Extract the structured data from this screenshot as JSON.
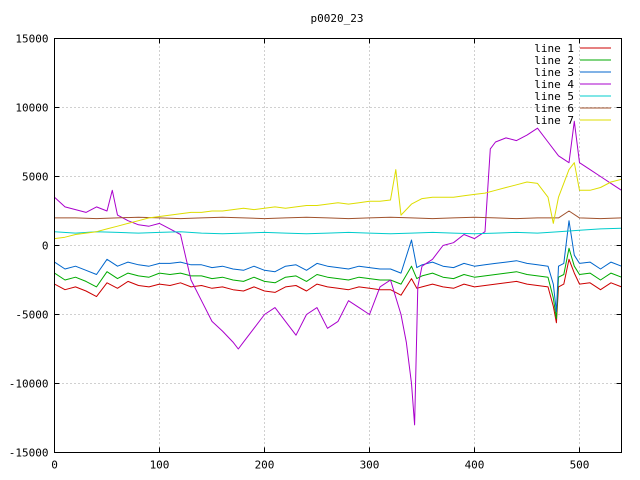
{
  "chart_data": {
    "type": "line",
    "title": "p0020_23",
    "xlabel": "",
    "ylabel": "",
    "xlim": [
      0,
      540
    ],
    "ylim": [
      -15000,
      15000
    ],
    "xticks": [
      0,
      100,
      200,
      300,
      400,
      500
    ],
    "yticks": [
      -15000,
      -10000,
      -5000,
      0,
      5000,
      10000,
      15000
    ],
    "grid": true,
    "legend": "top-right",
    "series": [
      {
        "name": "line 1",
        "color": "#cc0000",
        "x": [
          0,
          10,
          20,
          30,
          40,
          50,
          60,
          70,
          80,
          90,
          100,
          110,
          120,
          130,
          140,
          150,
          160,
          170,
          180,
          190,
          200,
          210,
          220,
          230,
          240,
          250,
          260,
          270,
          280,
          290,
          300,
          310,
          320,
          330,
          340,
          345,
          350,
          360,
          370,
          380,
          390,
          400,
          410,
          420,
          430,
          440,
          450,
          460,
          470,
          475,
          478,
          480,
          485,
          490,
          495,
          500,
          510,
          520,
          530,
          540
        ],
        "y": [
          -2800,
          -3200,
          -3000,
          -3300,
          -3700,
          -2700,
          -3100,
          -2600,
          -2900,
          -3000,
          -2800,
          -2900,
          -2700,
          -3000,
          -2900,
          -3100,
          -3000,
          -3200,
          -3300,
          -3000,
          -3300,
          -3400,
          -3000,
          -2900,
          -3300,
          -2800,
          -3000,
          -3100,
          -3200,
          -3000,
          -3100,
          -3200,
          -3200,
          -3600,
          -2400,
          -3100,
          -3000,
          -2800,
          -3000,
          -3100,
          -2800,
          -3000,
          -2900,
          -2800,
          -2700,
          -2600,
          -2800,
          -2900,
          -3000,
          -4400,
          -5600,
          -3000,
          -2800,
          -1000,
          -2000,
          -2800,
          -2700,
          -3200,
          -2700,
          -3000
        ]
      },
      {
        "name": "line 2",
        "color": "#00aa00",
        "x": [
          0,
          10,
          20,
          30,
          40,
          50,
          60,
          70,
          80,
          90,
          100,
          110,
          120,
          130,
          140,
          150,
          160,
          170,
          180,
          190,
          200,
          210,
          220,
          230,
          240,
          250,
          260,
          270,
          280,
          290,
          300,
          310,
          320,
          330,
          340,
          345,
          350,
          360,
          370,
          380,
          390,
          400,
          410,
          420,
          430,
          440,
          450,
          460,
          470,
          475,
          478,
          480,
          485,
          490,
          495,
          500,
          510,
          520,
          530,
          540
        ],
        "y": [
          -2000,
          -2500,
          -2300,
          -2600,
          -3000,
          -1900,
          -2400,
          -2000,
          -2200,
          -2300,
          -2000,
          -2100,
          -2000,
          -2200,
          -2200,
          -2400,
          -2300,
          -2500,
          -2600,
          -2300,
          -2600,
          -2700,
          -2300,
          -2200,
          -2600,
          -2100,
          -2300,
          -2400,
          -2500,
          -2300,
          -2400,
          -2500,
          -2500,
          -2800,
          -1500,
          -2400,
          -2200,
          -2000,
          -2300,
          -2400,
          -2100,
          -2300,
          -2200,
          -2100,
          -2000,
          -1900,
          -2100,
          -2200,
          -2300,
          -3800,
          -5300,
          -2300,
          -2100,
          -200,
          -1500,
          -2100,
          -2000,
          -2500,
          -2000,
          -2300
        ]
      },
      {
        "name": "line 3",
        "color": "#0066cc",
        "x": [
          0,
          10,
          20,
          30,
          40,
          50,
          60,
          70,
          80,
          90,
          100,
          110,
          120,
          130,
          140,
          150,
          160,
          170,
          180,
          190,
          200,
          210,
          220,
          230,
          240,
          250,
          260,
          270,
          280,
          290,
          300,
          310,
          320,
          330,
          340,
          345,
          350,
          360,
          370,
          380,
          390,
          400,
          410,
          420,
          430,
          440,
          450,
          460,
          470,
          475,
          478,
          480,
          485,
          490,
          495,
          500,
          510,
          520,
          530,
          540
        ],
        "y": [
          -1200,
          -1700,
          -1500,
          -1800,
          -2100,
          -1000,
          -1500,
          -1200,
          -1400,
          -1500,
          -1300,
          -1300,
          -1200,
          -1400,
          -1400,
          -1600,
          -1500,
          -1700,
          -1800,
          -1500,
          -1800,
          -1900,
          -1500,
          -1400,
          -1800,
          -1300,
          -1500,
          -1600,
          -1700,
          -1500,
          -1600,
          -1700,
          -1700,
          -2000,
          400,
          -1600,
          -1400,
          -1200,
          -1500,
          -1600,
          -1300,
          -1500,
          -1400,
          -1300,
          -1200,
          -1100,
          -1300,
          -1400,
          -1500,
          -2800,
          -4800,
          -1500,
          -1300,
          1800,
          -700,
          -1300,
          -1200,
          -1700,
          -1200,
          -1500
        ]
      },
      {
        "name": "line 4",
        "color": "#aa00cc",
        "x": [
          0,
          10,
          20,
          30,
          40,
          50,
          55,
          60,
          70,
          80,
          90,
          100,
          110,
          120,
          130,
          140,
          150,
          160,
          170,
          175,
          180,
          190,
          200,
          210,
          220,
          230,
          240,
          250,
          260,
          270,
          280,
          290,
          300,
          310,
          320,
          330,
          335,
          340,
          343,
          346,
          350,
          360,
          370,
          380,
          390,
          400,
          410,
          415,
          420,
          430,
          440,
          450,
          460,
          470,
          480,
          490,
          495,
          500,
          510,
          520,
          530,
          540
        ],
        "y": [
          3500,
          2800,
          2600,
          2400,
          2800,
          2500,
          4000,
          2200,
          1800,
          1500,
          1400,
          1600,
          1200,
          800,
          -2500,
          -4000,
          -5500,
          -6200,
          -7000,
          -7500,
          -7000,
          -6000,
          -5000,
          -4500,
          -5500,
          -6500,
          -5000,
          -4500,
          -6000,
          -5500,
          -4000,
          -4500,
          -5000,
          -3000,
          -2500,
          -5000,
          -7000,
          -10000,
          -13000,
          -3000,
          -1500,
          -1000,
          0,
          200,
          800,
          500,
          1000,
          7000,
          7500,
          7800,
          7600,
          8000,
          8500,
          7500,
          6500,
          6000,
          9000,
          6000,
          5500,
          5000,
          4500,
          4000
        ]
      },
      {
        "name": "line 5",
        "color": "#00cccc",
        "x": [
          0,
          20,
          40,
          60,
          80,
          100,
          120,
          140,
          160,
          180,
          200,
          220,
          240,
          260,
          280,
          300,
          320,
          340,
          360,
          380,
          400,
          420,
          440,
          460,
          480,
          500,
          520,
          540
        ],
        "y": [
          1000,
          900,
          1000,
          950,
          900,
          950,
          1000,
          900,
          850,
          900,
          950,
          900,
          850,
          900,
          950,
          900,
          850,
          900,
          950,
          900,
          850,
          900,
          950,
          900,
          1000,
          1100,
          1200,
          1250
        ]
      },
      {
        "name": "line 6",
        "color": "#a0522d",
        "x": [
          0,
          20,
          40,
          60,
          80,
          100,
          120,
          140,
          160,
          180,
          200,
          220,
          240,
          260,
          280,
          300,
          320,
          340,
          360,
          380,
          400,
          420,
          440,
          460,
          480,
          490,
          500,
          520,
          540
        ],
        "y": [
          2000,
          2000,
          1950,
          2000,
          2050,
          2000,
          1950,
          2000,
          2050,
          2000,
          1950,
          2000,
          2050,
          2000,
          1950,
          2000,
          2050,
          2000,
          1950,
          2000,
          2050,
          2000,
          1950,
          2000,
          2000,
          2500,
          2000,
          1950,
          2000
        ]
      },
      {
        "name": "line 7",
        "color": "#dddd00",
        "x": [
          0,
          10,
          20,
          30,
          40,
          50,
          60,
          70,
          80,
          90,
          100,
          110,
          120,
          130,
          140,
          150,
          160,
          170,
          180,
          190,
          200,
          210,
          220,
          230,
          240,
          250,
          260,
          270,
          280,
          290,
          300,
          310,
          320,
          325,
          330,
          340,
          350,
          360,
          370,
          380,
          390,
          400,
          410,
          420,
          430,
          440,
          450,
          460,
          470,
          475,
          480,
          490,
          495,
          500,
          510,
          520,
          530,
          540
        ],
        "y": [
          500,
          600,
          800,
          900,
          1000,
          1200,
          1400,
          1600,
          1800,
          2000,
          2100,
          2200,
          2300,
          2400,
          2400,
          2500,
          2500,
          2600,
          2700,
          2600,
          2700,
          2800,
          2700,
          2800,
          2900,
          2900,
          3000,
          3100,
          3000,
          3100,
          3200,
          3200,
          3300,
          5500,
          2200,
          3000,
          3400,
          3500,
          3500,
          3500,
          3600,
          3700,
          3800,
          4000,
          4200,
          4400,
          4600,
          4500,
          3500,
          1600,
          3500,
          5500,
          6000,
          4000,
          4000,
          4200,
          4600,
          4800
        ]
      }
    ]
  }
}
